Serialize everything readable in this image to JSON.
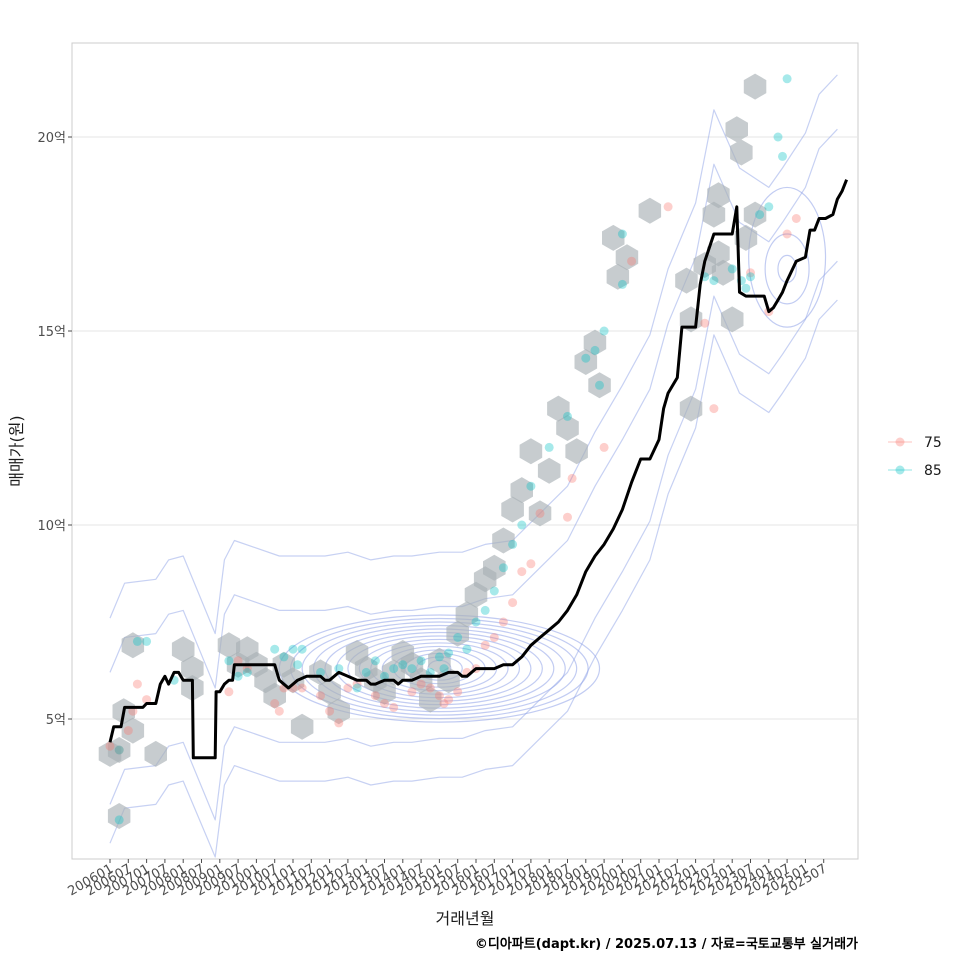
{
  "chart_data": {
    "type": "scatter",
    "xlabel": "거래년월",
    "ylabel": "매매가(원)",
    "caption": "©디아파트(dapt.kr) / 2025.07.13 / 자료=국토교통부 실거래가",
    "x_ticks": [
      "200601",
      "200607",
      "200701",
      "200707",
      "200801",
      "200807",
      "200901",
      "200907",
      "201001",
      "201007",
      "201101",
      "201107",
      "201201",
      "201207",
      "201301",
      "201307",
      "201401",
      "201407",
      "201501",
      "201507",
      "201601",
      "201607",
      "201701",
      "201707",
      "201801",
      "201807",
      "201901",
      "201907",
      "202001",
      "202007",
      "202101",
      "202107",
      "202201",
      "202207",
      "202301",
      "202307",
      "202401",
      "202407",
      "202501",
      "202507"
    ],
    "y_ticks": [
      {
        "value": 5,
        "label": "5억"
      },
      {
        "value": 10,
        "label": "10억"
      },
      {
        "value": 15,
        "label": "15억"
      },
      {
        "value": 20,
        "label": "20억"
      }
    ],
    "ylim": [
      1.6,
      22.5
    ],
    "xlim": [
      -4,
      78
    ],
    "grid": true,
    "legend_position": "right",
    "colors": {
      "75": "#F8766D",
      "85": "#00BFC4",
      "line": "#000000",
      "hex": "#A9B0B5",
      "contour": "#8FA3E8"
    },
    "legend": [
      {
        "key": "75",
        "label": "75",
        "color": "#F8766D"
      },
      {
        "key": "85",
        "label": "85",
        "color": "#00BFC4"
      }
    ],
    "series": [
      {
        "name": "75",
        "points": [
          [
            0,
            4.3
          ],
          [
            1,
            4.2
          ],
          [
            2,
            4.7
          ],
          [
            2.5,
            5.2
          ],
          [
            3,
            5.9
          ],
          [
            4,
            5.5
          ],
          [
            13,
            5.7
          ],
          [
            14,
            6.5
          ],
          [
            15,
            6.3
          ],
          [
            18,
            5.4
          ],
          [
            18.5,
            5.2
          ],
          [
            19,
            5.8
          ],
          [
            20,
            5.8
          ],
          [
            21,
            5.8
          ],
          [
            23,
            5.6
          ],
          [
            24,
            5.2
          ],
          [
            25,
            4.9
          ],
          [
            26,
            5.8
          ],
          [
            27,
            5.9
          ],
          [
            29,
            5.6
          ],
          [
            30,
            5.4
          ],
          [
            31,
            5.3
          ],
          [
            33,
            5.7
          ],
          [
            34,
            5.9
          ],
          [
            35,
            5.8
          ],
          [
            36,
            5.6
          ],
          [
            36.5,
            5.4
          ],
          [
            37,
            5.5
          ],
          [
            38,
            5.7
          ],
          [
            39,
            6.2
          ],
          [
            40,
            6.3
          ],
          [
            41,
            6.9
          ],
          [
            42,
            7.1
          ],
          [
            43,
            7.5
          ],
          [
            44,
            8.0
          ],
          [
            45,
            8.8
          ],
          [
            46,
            9.0
          ],
          [
            47,
            10.3
          ],
          [
            50,
            10.2
          ],
          [
            50.5,
            11.2
          ],
          [
            54,
            12.0
          ],
          [
            57,
            16.8
          ],
          [
            61,
            18.2
          ],
          [
            65,
            15.2
          ],
          [
            66,
            13.0
          ],
          [
            70,
            16.5
          ],
          [
            72,
            15.5
          ],
          [
            74,
            17.5
          ],
          [
            75,
            17.9
          ]
        ]
      },
      {
        "name": "85",
        "points": [
          [
            1,
            4.2
          ],
          [
            1,
            2.4
          ],
          [
            3,
            7.0
          ],
          [
            4,
            7.0
          ],
          [
            7,
            6.0
          ],
          [
            13,
            6.5
          ],
          [
            14,
            6.1
          ],
          [
            15,
            6.2
          ],
          [
            18,
            6.8
          ],
          [
            19,
            6.6
          ],
          [
            20,
            6.8
          ],
          [
            20.5,
            6.4
          ],
          [
            21,
            6.8
          ],
          [
            23,
            6.2
          ],
          [
            25,
            6.3
          ],
          [
            27,
            5.8
          ],
          [
            28,
            6.2
          ],
          [
            29,
            6.5
          ],
          [
            30,
            6.1
          ],
          [
            31,
            6.3
          ],
          [
            32,
            6.4
          ],
          [
            33,
            6.3
          ],
          [
            34,
            6.5
          ],
          [
            35,
            6.2
          ],
          [
            36,
            6.6
          ],
          [
            36.5,
            6.3
          ],
          [
            37,
            6.7
          ],
          [
            38,
            7.1
          ],
          [
            39,
            6.8
          ],
          [
            40,
            7.5
          ],
          [
            41,
            7.8
          ],
          [
            42,
            8.3
          ],
          [
            43,
            8.9
          ],
          [
            44,
            9.5
          ],
          [
            45,
            10.0
          ],
          [
            46,
            11.0
          ],
          [
            48,
            12.0
          ],
          [
            50,
            12.8
          ],
          [
            52,
            14.3
          ],
          [
            53,
            14.5
          ],
          [
            54,
            15.0
          ],
          [
            53.5,
            13.6
          ],
          [
            56,
            17.5
          ],
          [
            56,
            16.2
          ],
          [
            65,
            16.4
          ],
          [
            66,
            16.3
          ],
          [
            68,
            16.6
          ],
          [
            69,
            16.3
          ],
          [
            69.5,
            16.1
          ],
          [
            70,
            16.4
          ],
          [
            71,
            18.0
          ],
          [
            72,
            18.2
          ],
          [
            73,
            20.0
          ],
          [
            73.5,
            19.5
          ],
          [
            74,
            21.5
          ]
        ]
      }
    ],
    "trend_line": {
      "name": "",
      "points": [
        [
          0,
          4.4
        ],
        [
          0.4,
          4.8
        ],
        [
          1.2,
          4.8
        ],
        [
          1.6,
          5.3
        ],
        [
          3.6,
          5.3
        ],
        [
          4,
          5.4
        ],
        [
          5,
          5.4
        ],
        [
          5.5,
          5.9
        ],
        [
          6,
          6.1
        ],
        [
          6.4,
          5.9
        ],
        [
          7,
          6.2
        ],
        [
          7.5,
          6.2
        ],
        [
          8,
          6.0
        ],
        [
          9,
          6.0
        ],
        [
          9.1,
          4.0
        ],
        [
          11.5,
          4.0
        ],
        [
          11.6,
          5.7
        ],
        [
          12,
          5.7
        ],
        [
          12.5,
          5.9
        ],
        [
          13,
          6.0
        ],
        [
          13.4,
          6.0
        ],
        [
          13.6,
          6.4
        ],
        [
          16,
          6.4
        ],
        [
          18,
          6.4
        ],
        [
          18.5,
          6.0
        ],
        [
          19.5,
          5.8
        ],
        [
          20,
          5.9
        ],
        [
          20.5,
          6.0
        ],
        [
          21.5,
          6.1
        ],
        [
          23,
          6.1
        ],
        [
          23.5,
          6.0
        ],
        [
          24,
          6.0
        ],
        [
          25,
          6.2
        ],
        [
          26,
          6.1
        ],
        [
          27,
          6.0
        ],
        [
          28,
          6.0
        ],
        [
          28.5,
          5.9
        ],
        [
          29,
          5.9
        ],
        [
          30,
          6.0
        ],
        [
          31,
          6.0
        ],
        [
          31.5,
          5.9
        ],
        [
          32,
          6.0
        ],
        [
          33,
          6.0
        ],
        [
          34,
          6.1
        ],
        [
          35,
          6.1
        ],
        [
          36,
          6.1
        ],
        [
          37,
          6.2
        ],
        [
          38,
          6.2
        ],
        [
          38.5,
          6.1
        ],
        [
          39,
          6.1
        ],
        [
          40,
          6.3
        ],
        [
          41,
          6.3
        ],
        [
          42,
          6.3
        ],
        [
          43,
          6.4
        ],
        [
          44,
          6.4
        ],
        [
          45,
          6.6
        ],
        [
          46,
          6.9
        ],
        [
          47,
          7.1
        ],
        [
          48,
          7.3
        ],
        [
          49,
          7.5
        ],
        [
          50,
          7.8
        ],
        [
          51,
          8.2
        ],
        [
          52,
          8.8
        ],
        [
          53,
          9.2
        ],
        [
          54,
          9.5
        ],
        [
          55,
          9.9
        ],
        [
          56,
          10.4
        ],
        [
          57,
          11.1
        ],
        [
          58,
          11.7
        ],
        [
          59,
          11.7
        ],
        [
          60,
          12.2
        ],
        [
          60.5,
          13.0
        ],
        [
          61,
          13.4
        ],
        [
          62,
          13.8
        ],
        [
          62.5,
          15.1
        ],
        [
          64,
          15.1
        ],
        [
          64.5,
          16.2
        ],
        [
          65,
          16.8
        ],
        [
          66,
          17.5
        ],
        [
          68,
          17.5
        ],
        [
          68.5,
          18.2
        ],
        [
          68.8,
          16.0
        ],
        [
          69.5,
          15.9
        ],
        [
          71.5,
          15.9
        ],
        [
          72,
          15.5
        ],
        [
          72.5,
          15.6
        ],
        [
          73,
          15.8
        ],
        [
          73.5,
          16.0
        ],
        [
          74,
          16.3
        ],
        [
          75,
          16.8
        ],
        [
          76,
          16.9
        ],
        [
          76.5,
          17.6
        ],
        [
          77,
          17.6
        ],
        [
          77.5,
          17.9
        ],
        [
          78.2,
          17.9
        ],
        [
          79,
          18.0
        ],
        [
          79.5,
          18.4
        ],
        [
          80,
          18.6
        ],
        [
          80.5,
          18.9
        ]
      ]
    },
    "hex_bins": [
      [
        0,
        4.1
      ],
      [
        1,
        4.2
      ],
      [
        1,
        2.5
      ],
      [
        1.5,
        5.2
      ],
      [
        2.5,
        4.7
      ],
      [
        2.5,
        6.9
      ],
      [
        5,
        4.1
      ],
      [
        8,
        6.8
      ],
      [
        9,
        6.3
      ],
      [
        9,
        5.8
      ],
      [
        13,
        6.9
      ],
      [
        14,
        6.4
      ],
      [
        15,
        6.8
      ],
      [
        16,
        6.4
      ],
      [
        17,
        6.0
      ],
      [
        18,
        5.6
      ],
      [
        19,
        6.4
      ],
      [
        20,
        6.0
      ],
      [
        21,
        4.8
      ],
      [
        23,
        6.2
      ],
      [
        24,
        5.7
      ],
      [
        25,
        5.2
      ],
      [
        27,
        6.7
      ],
      [
        28,
        6.3
      ],
      [
        29,
        6.0
      ],
      [
        30,
        5.7
      ],
      [
        31,
        6.2
      ],
      [
        32,
        6.7
      ],
      [
        33,
        6.4
      ],
      [
        34,
        6.0
      ],
      [
        35,
        5.5
      ],
      [
        36,
        6.5
      ],
      [
        37,
        6.0
      ],
      [
        38,
        7.2
      ],
      [
        39,
        7.7
      ],
      [
        40,
        8.2
      ],
      [
        41,
        8.6
      ],
      [
        42,
        8.9
      ],
      [
        43,
        9.6
      ],
      [
        44,
        10.4
      ],
      [
        45,
        10.9
      ],
      [
        46,
        11.9
      ],
      [
        47,
        10.3
      ],
      [
        48,
        11.4
      ],
      [
        49,
        13.0
      ],
      [
        50,
        12.5
      ],
      [
        51,
        11.9
      ],
      [
        52,
        14.2
      ],
      [
        53,
        14.7
      ],
      [
        53.5,
        13.6
      ],
      [
        55,
        17.4
      ],
      [
        55.5,
        16.4
      ],
      [
        56.5,
        16.9
      ],
      [
        59,
        18.1
      ],
      [
        63,
        16.3
      ],
      [
        63.5,
        15.3
      ],
      [
        63.5,
        13.0
      ],
      [
        65,
        16.7
      ],
      [
        66,
        18.0
      ],
      [
        66.5,
        18.5
      ],
      [
        66.5,
        17.0
      ],
      [
        67,
        16.5
      ],
      [
        68,
        15.3
      ],
      [
        68.5,
        20.2
      ],
      [
        69,
        19.6
      ],
      [
        69.5,
        17.4
      ],
      [
        70.5,
        18.0
      ],
      [
        70.5,
        21.3
      ]
    ],
    "contour_center": [
      36,
      6.3
    ]
  }
}
